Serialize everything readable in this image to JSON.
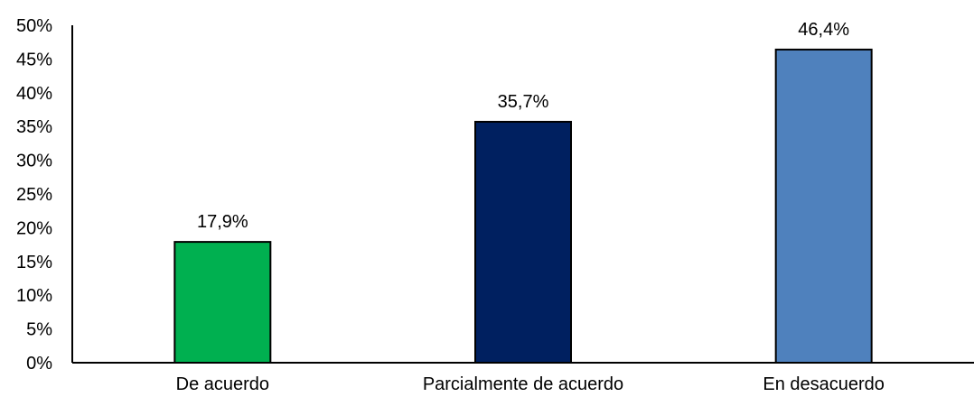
{
  "chart_data": {
    "type": "bar",
    "categories": [
      "De acuerdo",
      "Parcialmente de acuerdo",
      "En desacuerdo"
    ],
    "values": [
      17.9,
      35.7,
      46.4
    ],
    "value_labels": [
      "17,9%",
      "35,7%",
      "46,4%"
    ],
    "colors": [
      "#00b050",
      "#002060",
      "#4f81bd"
    ],
    "ylim": [
      0,
      50
    ],
    "yticks": [
      0,
      5,
      10,
      15,
      20,
      25,
      30,
      35,
      40,
      45,
      50
    ],
    "ytick_labels": [
      "0%",
      "5%",
      "10%",
      "15%",
      "20%",
      "25%",
      "30%",
      "35%",
      "40%",
      "45%",
      "50%"
    ],
    "grid": false,
    "title": "",
    "xlabel": "",
    "ylabel": ""
  }
}
